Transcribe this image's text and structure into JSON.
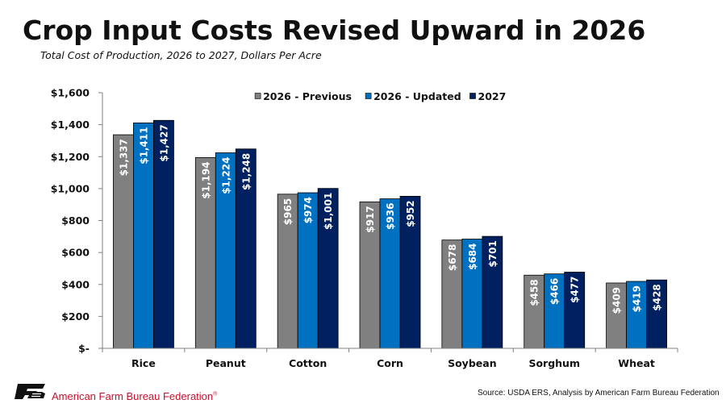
{
  "title": "Crop Input Costs Revised Upward in 2026",
  "subtitle": "Total Cost of Production, 2026 to 2027, Dollars Per Acre",
  "footer": {
    "org_name": "American Farm Bureau Federation",
    "org_mark": "®",
    "source": "Source: USDA ERS, Analysis by American Farm Bureau Federation"
  },
  "chart_data": {
    "type": "bar",
    "categories": [
      "Rice",
      "Peanut",
      "Cotton",
      "Corn",
      "Soybean",
      "Sorghum",
      "Wheat"
    ],
    "series": [
      {
        "name": "2026 - Previous",
        "values": [
          1337,
          1194,
          965,
          917,
          678,
          458,
          409
        ],
        "labels": [
          "$1,337",
          "$1,194",
          "$965",
          "$917",
          "$678",
          "$458",
          "$409"
        ],
        "color": "#808080"
      },
      {
        "name": "2026 - Updated",
        "values": [
          1411,
          1224,
          974,
          936,
          684,
          466,
          419
        ],
        "labels": [
          "$1,411",
          "$1,224",
          "$974",
          "$936",
          "$684",
          "$466",
          "$419"
        ],
        "color": "#0070c0"
      },
      {
        "name": "2027",
        "values": [
          1427,
          1248,
          1001,
          952,
          701,
          477,
          428
        ],
        "labels": [
          "$1,427",
          "$1,248",
          "$1,001",
          "$952",
          "$701",
          "$477",
          "$428"
        ],
        "color": "#002060"
      }
    ],
    "ylim": [
      0,
      1600
    ],
    "yticks": [
      0,
      200,
      400,
      600,
      800,
      1000,
      1200,
      1400,
      1600
    ],
    "ytick_labels": [
      "$-",
      "$200",
      "$400",
      "$600",
      "$800",
      "$1,000",
      "$1,200",
      "$1,400",
      "$1,600"
    ],
    "legend_position": "top-center",
    "grid": false
  }
}
